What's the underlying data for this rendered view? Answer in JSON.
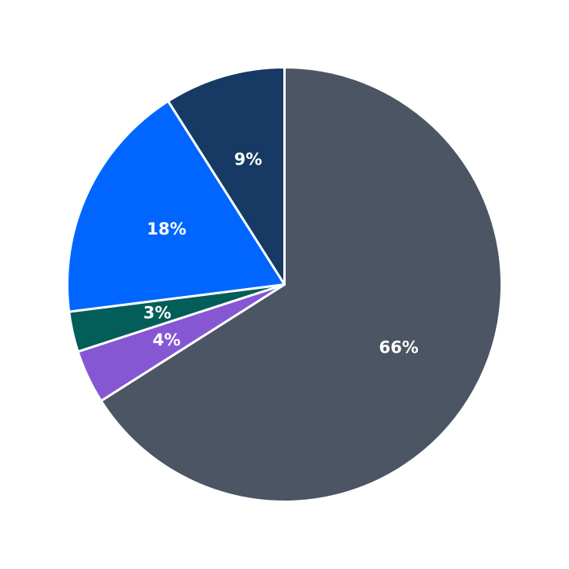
{
  "chart_data": {
    "type": "pie",
    "title": "",
    "slices": [
      {
        "value": 66,
        "label": "66%",
        "color": "#4b5563"
      },
      {
        "value": 4,
        "label": "4%",
        "color": "#8657d3"
      },
      {
        "value": 3,
        "label": "3%",
        "color": "#035e5a"
      },
      {
        "value": 18,
        "label": "18%",
        "color": "#0066ff"
      },
      {
        "value": 9,
        "label": "9%",
        "color": "#163a63"
      }
    ],
    "start_angle": "12 o'clock",
    "direction": "clockwise",
    "legend": "none"
  }
}
